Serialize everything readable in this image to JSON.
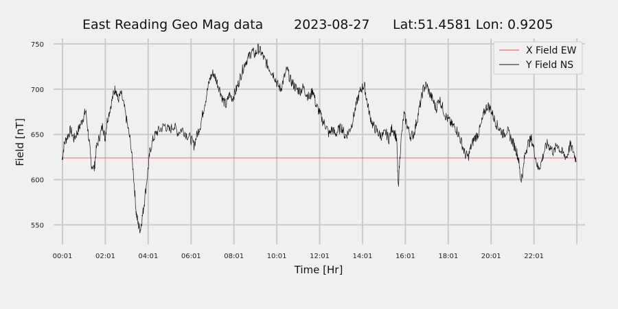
{
  "chart_data": {
    "type": "line",
    "title": "East Reading Geo Mag data",
    "title_date": "2023-08-27",
    "title_location": "Lat:51.4581  Lon: 0.9205",
    "xlabel": "Time  [Hr]",
    "ylabel": "Field  [nT]",
    "x_unit": "hours",
    "xlim": [
      -0.4,
      24.4
    ],
    "ylim": [
      536,
      756
    ],
    "x_ticks": [
      0.0167,
      2.0167,
      4.0167,
      6.0167,
      8.0167,
      10.0167,
      12.0167,
      14.0167,
      16.0167,
      18.0167,
      20.0167,
      22.0167,
      24.0167
    ],
    "x_tick_labels": [
      "00:01",
      "02:01",
      "04:01",
      "06:01",
      "08:01",
      "10:01",
      "12:01",
      "14:01",
      "16:01",
      "18:01",
      "20:01",
      "22:01",
      ""
    ],
    "y_ticks": [
      550,
      600,
      650,
      700,
      750
    ],
    "y_tick_labels": [
      "550",
      "600",
      "650",
      "700",
      "750"
    ],
    "grid": true,
    "legend": "top-right",
    "series": [
      {
        "name": "X Field EW",
        "color": "#e8474a",
        "x": [
          0.0,
          24.0
        ],
        "values": [
          624,
          624
        ]
      },
      {
        "name": "Y Field NS",
        "color": "#111111",
        "x": [
          0.0,
          0.1,
          0.25,
          0.4,
          0.55,
          0.7,
          0.85,
          1.0,
          1.1,
          1.25,
          1.35,
          1.5,
          1.6,
          1.75,
          1.9,
          2.0,
          2.1,
          2.25,
          2.4,
          2.5,
          2.6,
          2.75,
          2.9,
          3.05,
          3.2,
          3.35,
          3.45,
          3.55,
          3.65,
          3.75,
          3.85,
          4.0,
          4.1,
          4.25,
          4.4,
          4.6,
          4.8,
          5.0,
          5.2,
          5.4,
          5.6,
          5.8,
          6.0,
          6.15,
          6.3,
          6.45,
          6.6,
          6.75,
          6.9,
          7.05,
          7.2,
          7.35,
          7.5,
          7.65,
          7.8,
          7.95,
          8.1,
          8.25,
          8.4,
          8.55,
          8.7,
          8.85,
          9.0,
          9.15,
          9.3,
          9.45,
          9.6,
          9.75,
          9.9,
          10.05,
          10.2,
          10.35,
          10.5,
          10.65,
          10.8,
          10.95,
          11.1,
          11.25,
          11.4,
          11.55,
          11.7,
          11.85,
          12.0,
          12.15,
          12.3,
          12.45,
          12.6,
          12.75,
          12.9,
          13.05,
          13.2,
          13.35,
          13.5,
          13.65,
          13.8,
          13.95,
          14.1,
          14.2,
          14.35,
          14.5,
          14.65,
          14.8,
          14.95,
          15.1,
          15.25,
          15.4,
          15.55,
          15.62,
          15.68,
          15.8,
          15.95,
          16.1,
          16.25,
          16.4,
          16.55,
          16.7,
          16.85,
          17.0,
          17.15,
          17.3,
          17.45,
          17.6,
          17.75,
          17.9,
          18.05,
          18.2,
          18.35,
          18.5,
          18.65,
          18.8,
          18.95,
          19.1,
          19.25,
          19.4,
          19.55,
          19.7,
          19.85,
          20.0,
          20.15,
          20.3,
          20.45,
          20.6,
          20.75,
          20.9,
          21.05,
          21.2,
          21.3,
          21.4,
          21.5,
          21.6,
          21.75,
          21.9,
          22.05,
          22.2,
          22.35,
          22.5,
          22.65,
          22.8,
          22.95,
          23.1,
          23.25,
          23.4,
          23.55,
          23.7,
          23.85,
          24.0
        ],
        "values": [
          622,
          640,
          648,
          655,
          645,
          652,
          660,
          670,
          676,
          645,
          618,
          612,
          635,
          648,
          660,
          645,
          665,
          680,
          695,
          702,
          688,
          695,
          680,
          660,
          640,
          600,
          565,
          550,
          545,
          560,
          578,
          610,
          632,
          645,
          652,
          656,
          660,
          654,
          660,
          652,
          656,
          650,
          645,
          638,
          650,
          660,
          678,
          695,
          712,
          718,
          710,
          700,
          688,
          682,
          694,
          690,
          698,
          708,
          720,
          730,
          735,
          742,
          738,
          745,
          740,
          732,
          726,
          720,
          715,
          705,
          700,
          712,
          722,
          710,
          705,
          700,
          698,
          702,
          695,
          690,
          700,
          682,
          675,
          665,
          660,
          650,
          656,
          650,
          655,
          658,
          648,
          652,
          660,
          675,
          690,
          700,
          705,
          690,
          672,
          660,
          655,
          650,
          648,
          652,
          645,
          658,
          650,
          640,
          592,
          640,
          672,
          660,
          648,
          650,
          665,
          682,
          700,
          705,
          695,
          688,
          678,
          690,
          680,
          670,
          665,
          660,
          658,
          650,
          640,
          628,
          625,
          638,
          646,
          650,
          660,
          675,
          682,
          678,
          668,
          660,
          655,
          650,
          655,
          648,
          640,
          632,
          622,
          600,
          608,
          630,
          640,
          645,
          630,
          612,
          618,
          632,
          640,
          635,
          630,
          640,
          632,
          628,
          625,
          638,
          632,
          620
        ]
      }
    ]
  }
}
